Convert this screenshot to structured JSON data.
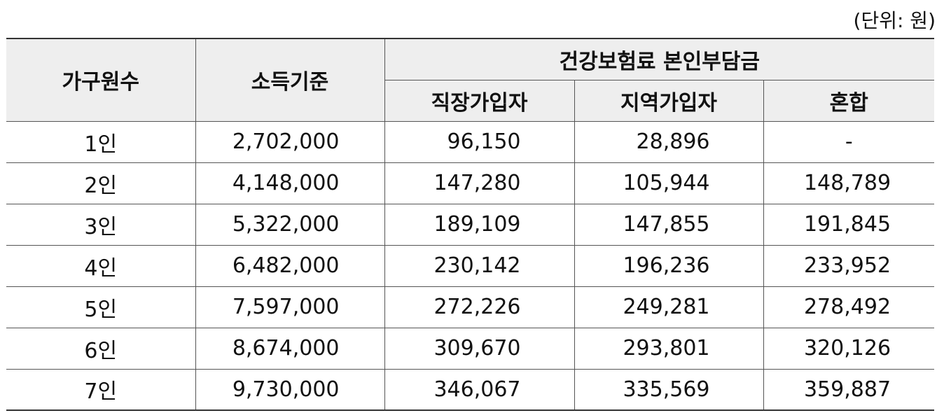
{
  "unit_note": "(단위: 원)",
  "headers": {
    "household": "가구원수",
    "income": "소득기준",
    "group": "건강보험료 본인부담금",
    "employee": "직장가입자",
    "regional": "지역가입자",
    "mixed": "혼합"
  },
  "rows": [
    {
      "household": "1인",
      "income": "2,702,000",
      "employee": "96,150",
      "regional": "28,896",
      "mixed": "-"
    },
    {
      "household": "2인",
      "income": "4,148,000",
      "employee": "147,280",
      "regional": "105,944",
      "mixed": "148,789"
    },
    {
      "household": "3인",
      "income": "5,322,000",
      "employee": "189,109",
      "regional": "147,855",
      "mixed": "191,845"
    },
    {
      "household": "4인",
      "income": "6,482,000",
      "employee": "230,142",
      "regional": "196,236",
      "mixed": "233,952"
    },
    {
      "household": "5인",
      "income": "7,597,000",
      "employee": "272,226",
      "regional": "249,281",
      "mixed": "278,492"
    },
    {
      "household": "6인",
      "income": "8,674,000",
      "employee": "309,670",
      "regional": "293,801",
      "mixed": "320,126"
    },
    {
      "household": "7인",
      "income": "9,730,000",
      "employee": "346,067",
      "regional": "335,569",
      "mixed": "359,887"
    }
  ]
}
